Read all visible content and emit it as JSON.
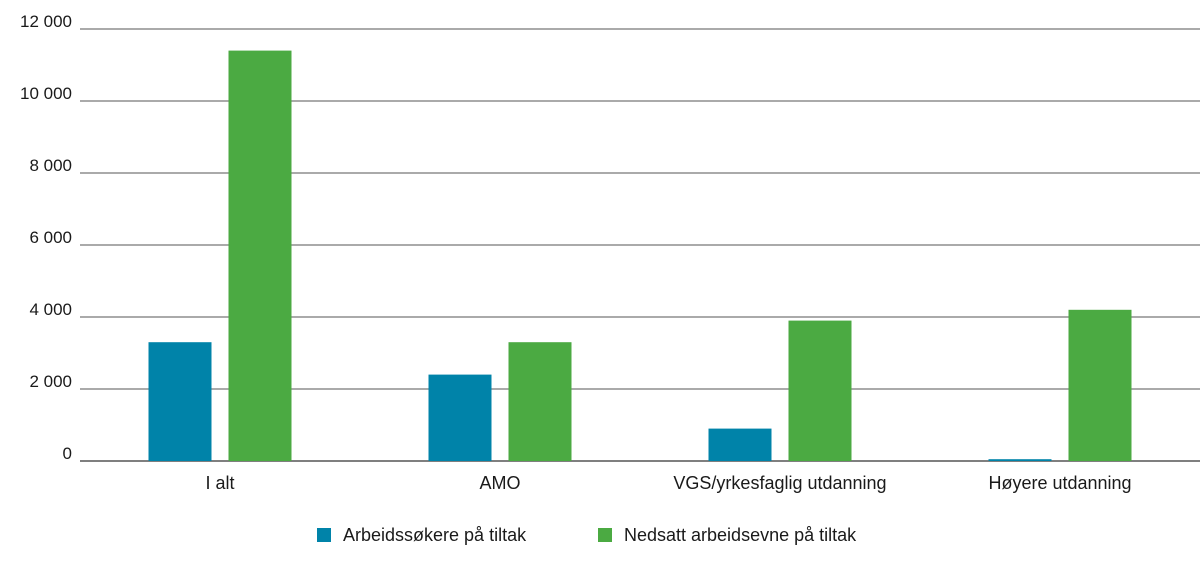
{
  "chart_data": {
    "type": "bar",
    "categories": [
      "I alt",
      "AMO",
      "VGS/yrkesfaglig utdanning",
      "Høyere utdanning"
    ],
    "series": [
      {
        "name": "Arbeidssøkere på tiltak",
        "color": "#0083A9",
        "values": [
          3300,
          2400,
          900,
          50
        ]
      },
      {
        "name": "Nedsatt arbeidsevne på tiltak",
        "color": "#4BAA42",
        "values": [
          11400,
          3300,
          3900,
          4200
        ]
      }
    ],
    "y_ticks": [
      {
        "value": 0,
        "label": "0"
      },
      {
        "value": 2000,
        "label": "2 000"
      },
      {
        "value": 4000,
        "label": "4 000"
      },
      {
        "value": 6000,
        "label": "6 000"
      },
      {
        "value": 8000,
        "label": "8 000"
      },
      {
        "value": 10000,
        "label": "10 000"
      },
      {
        "value": 12000,
        "label": "12 000"
      }
    ],
    "ylim": [
      0,
      12000
    ],
    "grid": true,
    "legend_position": "bottom-center",
    "title": "",
    "xlabel": "",
    "ylabel": ""
  }
}
